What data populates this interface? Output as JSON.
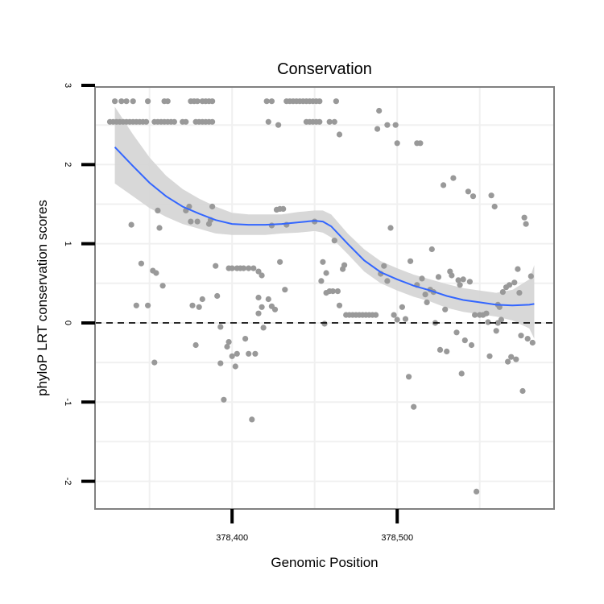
{
  "chart_data": {
    "type": "scatter",
    "title": "Conservation",
    "xlabel": "Genomic Position",
    "ylabel": "phyloP LRT conservation scores",
    "xlim": [
      378317,
      378595
    ],
    "ylim": [
      -2.35,
      2.98
    ],
    "x_ticks": [
      378400,
      378500
    ],
    "x_tick_labels": [
      "378,400",
      "378,500"
    ],
    "y_ticks": [
      -2,
      -1,
      0,
      1,
      2,
      3
    ],
    "y_tick_labels": [
      "-2",
      "-1",
      "0",
      "1",
      "2",
      "3"
    ],
    "grid": true,
    "reference_line": {
      "y": 0,
      "style": "dashed",
      "color": "#000000"
    },
    "colors": {
      "points": "#999999",
      "smooth": "#3366ff",
      "ribbon": "#d4d4d4",
      "panel_border": "#808080",
      "grid": "#f0f0f0"
    },
    "series": [
      {
        "type": "scatter",
        "points": [
          [
            378329,
            2.8
          ],
          [
            378333,
            2.8
          ],
          [
            378336,
            2.8
          ],
          [
            378340,
            2.8
          ],
          [
            378349,
            2.8
          ],
          [
            378359,
            2.8
          ],
          [
            378361,
            2.8
          ],
          [
            378375,
            2.8
          ],
          [
            378377,
            2.8
          ],
          [
            378379,
            2.8
          ],
          [
            378382,
            2.8
          ],
          [
            378384,
            2.8
          ],
          [
            378386,
            2.8
          ],
          [
            378388,
            2.8
          ],
          [
            378421,
            2.8
          ],
          [
            378424,
            2.8
          ],
          [
            378433,
            2.8
          ],
          [
            378435,
            2.8
          ],
          [
            378437,
            2.8
          ],
          [
            378439,
            2.8
          ],
          [
            378441,
            2.8
          ],
          [
            378443,
            2.8
          ],
          [
            378445,
            2.8
          ],
          [
            378447,
            2.8
          ],
          [
            378449,
            2.8
          ],
          [
            378451,
            2.8
          ],
          [
            378453,
            2.8
          ],
          [
            378463,
            2.8
          ],
          [
            378326,
            2.54
          ],
          [
            378328,
            2.54
          ],
          [
            378330,
            2.54
          ],
          [
            378332,
            2.54
          ],
          [
            378334,
            2.54
          ],
          [
            378336,
            2.54
          ],
          [
            378338,
            2.54
          ],
          [
            378340,
            2.54
          ],
          [
            378342,
            2.54
          ],
          [
            378344,
            2.54
          ],
          [
            378346,
            2.54
          ],
          [
            378348,
            2.54
          ],
          [
            378353,
            2.54
          ],
          [
            378355,
            2.54
          ],
          [
            378357,
            2.54
          ],
          [
            378359,
            2.54
          ],
          [
            378361,
            2.54
          ],
          [
            378363,
            2.54
          ],
          [
            378365,
            2.54
          ],
          [
            378370,
            2.54
          ],
          [
            378372,
            2.54
          ],
          [
            378378,
            2.54
          ],
          [
            378380,
            2.54
          ],
          [
            378382,
            2.54
          ],
          [
            378384,
            2.54
          ],
          [
            378386,
            2.54
          ],
          [
            378388,
            2.54
          ],
          [
            378422,
            2.54
          ],
          [
            378428,
            2.5
          ],
          [
            378445,
            2.54
          ],
          [
            378447,
            2.54
          ],
          [
            378449,
            2.54
          ],
          [
            378451,
            2.54
          ],
          [
            378453,
            2.54
          ],
          [
            378459,
            2.54
          ],
          [
            378462,
            2.54
          ],
          [
            378465,
            2.38
          ],
          [
            378489,
            2.68
          ],
          [
            378488,
            2.45
          ],
          [
            378494,
            2.5
          ],
          [
            378499,
            2.5
          ],
          [
            378500,
            2.27
          ],
          [
            378512,
            2.27
          ],
          [
            378514,
            2.27
          ],
          [
            378339,
            1.24
          ],
          [
            378345,
            0.75
          ],
          [
            378342,
            0.22
          ],
          [
            378349,
            0.22
          ],
          [
            378352,
            0.66
          ],
          [
            378354,
            0.63
          ],
          [
            378355,
            1.42
          ],
          [
            378356,
            1.2
          ],
          [
            378358,
            0.47
          ],
          [
            378353,
            -0.5
          ],
          [
            378372,
            1.42
          ],
          [
            378374,
            1.47
          ],
          [
            378375,
            1.28
          ],
          [
            378379,
            1.28
          ],
          [
            378376,
            0.22
          ],
          [
            378378,
            -0.28
          ],
          [
            378380,
            0.2
          ],
          [
            378382,
            0.3
          ],
          [
            378386,
            1.25
          ],
          [
            378387,
            1.3
          ],
          [
            378388,
            1.47
          ],
          [
            378390,
            0.72
          ],
          [
            378391,
            0.34
          ],
          [
            378393,
            -0.05
          ],
          [
            378393,
            -0.51
          ],
          [
            378395,
            -0.97
          ],
          [
            378397,
            -0.3
          ],
          [
            378398,
            -0.24
          ],
          [
            378400,
            -0.42
          ],
          [
            378402,
            -0.55
          ],
          [
            378403,
            -0.39
          ],
          [
            378398,
            0.69
          ],
          [
            378400,
            0.69
          ],
          [
            378403,
            0.69
          ],
          [
            378405,
            0.69
          ],
          [
            378407,
            0.69
          ],
          [
            378410,
            0.69
          ],
          [
            378413,
            0.69
          ],
          [
            378416,
            0.65
          ],
          [
            378418,
            0.6
          ],
          [
            378416,
            0.32
          ],
          [
            378416,
            0.12
          ],
          [
            378418,
            0.2
          ],
          [
            378419,
            -0.06
          ],
          [
            378410,
            -0.39
          ],
          [
            378414,
            -0.39
          ],
          [
            378408,
            -0.2
          ],
          [
            378412,
            -1.22
          ],
          [
            378424,
            1.23
          ],
          [
            378427,
            1.43
          ],
          [
            378429,
            1.44
          ],
          [
            378431,
            1.44
          ],
          [
            378433,
            1.24
          ],
          [
            378429,
            0.77
          ],
          [
            378432,
            0.42
          ],
          [
            378424,
            0.21
          ],
          [
            378426,
            0.17
          ],
          [
            378422,
            0.3
          ],
          [
            378450,
            1.28
          ],
          [
            378454,
            0.53
          ],
          [
            378455,
            0.77
          ],
          [
            378457,
            0.63
          ],
          [
            378457,
            0.38
          ],
          [
            378459,
            0.4
          ],
          [
            378461,
            0.4
          ],
          [
            378462,
            1.04
          ],
          [
            378464,
            0.4
          ],
          [
            378456,
            -0.01
          ],
          [
            378465,
            0.22
          ],
          [
            378467,
            0.68
          ],
          [
            378468,
            0.73
          ],
          [
            378469,
            0.1
          ],
          [
            378471,
            0.1
          ],
          [
            378473,
            0.1
          ],
          [
            378475,
            0.1
          ],
          [
            378477,
            0.1
          ],
          [
            378479,
            0.1
          ],
          [
            378481,
            0.1
          ],
          [
            378483,
            0.1
          ],
          [
            378485,
            0.1
          ],
          [
            378487,
            0.1
          ],
          [
            378490,
            0.62
          ],
          [
            378492,
            0.72
          ],
          [
            378494,
            0.53
          ],
          [
            378496,
            1.2
          ],
          [
            378498,
            0.1
          ],
          [
            378500,
            0.04
          ],
          [
            378503,
            0.2
          ],
          [
            378505,
            0.05
          ],
          [
            378507,
            -0.68
          ],
          [
            378508,
            0.78
          ],
          [
            378510,
            -1.06
          ],
          [
            378512,
            0.48
          ],
          [
            378515,
            0.56
          ],
          [
            378517,
            0.36
          ],
          [
            378518,
            0.26
          ],
          [
            378520,
            0.42
          ],
          [
            378521,
            0.93
          ],
          [
            378522,
            0.39
          ],
          [
            378523,
            0.0
          ],
          [
            378525,
            0.58
          ],
          [
            378526,
            -0.34
          ],
          [
            378528,
            1.74
          ],
          [
            378529,
            0.17
          ],
          [
            378530,
            -0.36
          ],
          [
            378532,
            0.65
          ],
          [
            378534,
            1.83
          ],
          [
            378533,
            0.6
          ],
          [
            378536,
            -0.12
          ],
          [
            378537,
            0.54
          ],
          [
            378538,
            0.48
          ],
          [
            378539,
            -0.64
          ],
          [
            378540,
            0.55
          ],
          [
            378541,
            -0.22
          ],
          [
            378543,
            1.66
          ],
          [
            378544,
            0.52
          ],
          [
            378546,
            1.6
          ],
          [
            378545,
            -0.28
          ],
          [
            378547,
            0.1
          ],
          [
            378548,
            -2.13
          ],
          [
            378550,
            0.1
          ],
          [
            378552,
            0.1
          ],
          [
            378554,
            0.12
          ],
          [
            378556,
            -0.42
          ],
          [
            378557,
            1.61
          ],
          [
            378559,
            1.47
          ],
          [
            378561,
            0.23
          ],
          [
            378562,
            0.2
          ],
          [
            378564,
            0.39
          ],
          [
            378566,
            0.45
          ],
          [
            378567,
            -0.49
          ],
          [
            378568,
            0.48
          ],
          [
            378569,
            -0.43
          ],
          [
            378571,
            0.51
          ],
          [
            378572,
            -0.46
          ],
          [
            378573,
            0.68
          ],
          [
            378574,
            0.38
          ],
          [
            378575,
            -0.16
          ],
          [
            378576,
            -0.86
          ],
          [
            378577,
            1.33
          ],
          [
            378578,
            1.25
          ],
          [
            378579,
            -0.2
          ],
          [
            378581,
            0.59
          ],
          [
            378582,
            -0.25
          ],
          [
            378563,
            0.04
          ],
          [
            378561,
            0.0
          ],
          [
            378560,
            -0.1
          ],
          [
            378555,
            0.01
          ]
        ]
      },
      {
        "type": "smooth",
        "x": [
          378329,
          378340,
          378350,
          378360,
          378370,
          378380,
          378390,
          378400,
          378410,
          378420,
          378430,
          378440,
          378450,
          378455,
          378460,
          378470,
          378480,
          378490,
          378500,
          378510,
          378520,
          378530,
          378540,
          378550,
          378560,
          378570,
          378580,
          378583
        ],
        "y": [
          2.22,
          1.98,
          1.77,
          1.6,
          1.47,
          1.38,
          1.3,
          1.25,
          1.24,
          1.24,
          1.25,
          1.27,
          1.29,
          1.28,
          1.22,
          1.0,
          0.79,
          0.64,
          0.55,
          0.47,
          0.41,
          0.34,
          0.29,
          0.26,
          0.23,
          0.22,
          0.23,
          0.24
        ],
        "ci_upper": [
          2.73,
          2.38,
          2.09,
          1.86,
          1.69,
          1.57,
          1.47,
          1.39,
          1.37,
          1.37,
          1.37,
          1.4,
          1.42,
          1.42,
          1.37,
          1.13,
          0.93,
          0.78,
          0.69,
          0.61,
          0.55,
          0.49,
          0.44,
          0.41,
          0.38,
          0.42,
          0.55,
          0.73
        ],
        "ci_lower": [
          1.76,
          1.6,
          1.45,
          1.34,
          1.25,
          1.19,
          1.13,
          1.11,
          1.11,
          1.11,
          1.13,
          1.14,
          1.16,
          1.14,
          1.08,
          0.87,
          0.65,
          0.5,
          0.41,
          0.33,
          0.27,
          0.19,
          0.14,
          0.11,
          0.08,
          0.03,
          -0.07,
          -0.2
        ]
      }
    ]
  }
}
